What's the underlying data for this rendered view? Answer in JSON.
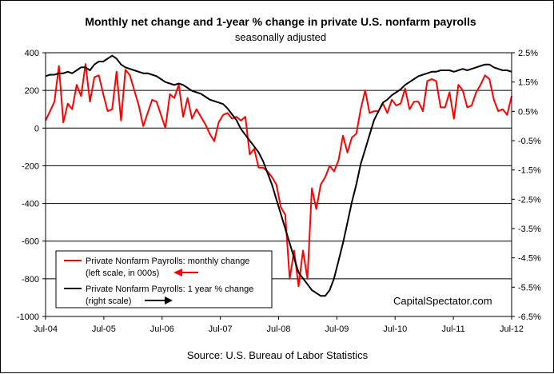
{
  "chart_data": {
    "type": "line",
    "title": "Monthly net change and 1-year %  change in private U.S. nonfarm payrolls",
    "subtitle": "seasonally adjusted",
    "source": "Source: U.S. Bureau of Labor Statistics",
    "watermark": "CapitalSpectator.com",
    "x_labels": [
      "Jul-04",
      "Jul-05",
      "Jul-06",
      "Jul-07",
      "Jul-08",
      "Jul-09",
      "Jul-10",
      "Jul-11",
      "Jul-12"
    ],
    "x_range": [
      "2004-07",
      "2012-07"
    ],
    "y_left": {
      "min": -1000,
      "max": 400,
      "step": 200,
      "ticks": [
        "400",
        "200",
        "0",
        "-200",
        "-400",
        "-600",
        "-800",
        "-1000"
      ]
    },
    "y_right": {
      "min": -6.5,
      "max": 2.5,
      "ticks": [
        "2.5%",
        "1.5%",
        "0.5%",
        "-0.5%",
        "-1.5%",
        "-2.5%",
        "-3.5%",
        "-4.5%",
        "-5.5%",
        "-6.5%"
      ]
    },
    "grid": "horizontal",
    "legend": {
      "placement": "bottom-left",
      "entries": [
        {
          "line1": "Private Nonfarm Payrolls: monthly change",
          "line2": "(left scale, in 000s)",
          "color": "#ff0000",
          "arrow": "left"
        },
        {
          "line1": "Private Nonfarm Payrolls:  1 year % change",
          "line2": "(right scale)",
          "color": "#000000",
          "arrow": "right"
        }
      ]
    },
    "series": [
      {
        "name": "Private Nonfarm Payrolls: monthly change",
        "color": "#ff0000",
        "axis": "left",
        "values": [
          40,
          90,
          140,
          330,
          30,
          130,
          100,
          230,
          170,
          340,
          140,
          270,
          280,
          180,
          90,
          100,
          300,
          40,
          310,
          280,
          200,
          120,
          10,
          80,
          150,
          140,
          70,
          0,
          180,
          160,
          230,
          60,
          160,
          50,
          100,
          60,
          20,
          -30,
          -70,
          30,
          70,
          80,
          50,
          60,
          40,
          60,
          -140,
          -110,
          -210,
          -210,
          -230,
          -260,
          -300,
          -420,
          -460,
          -800,
          -650,
          -840,
          -650,
          -800,
          -320,
          -430,
          -300,
          -260,
          -200,
          -230,
          -170,
          -40,
          -130,
          -50,
          -30,
          100,
          200,
          80,
          90,
          90,
          130,
          80,
          150,
          120,
          130,
          210,
          100,
          140,
          140,
          90,
          250,
          260,
          250,
          110,
          110,
          190,
          50,
          230,
          200,
          110,
          120,
          190,
          230,
          280,
          260,
          150,
          90,
          100,
          70,
          170
        ]
      },
      {
        "name": "Private Nonfarm Payrolls:  1 year % change",
        "color": "#000000",
        "axis": "right",
        "values": [
          1.7,
          1.75,
          1.75,
          1.8,
          1.8,
          1.85,
          1.8,
          1.9,
          2.0,
          2.0,
          1.9,
          2.1,
          2.2,
          2.2,
          2.3,
          2.4,
          2.3,
          2.1,
          2.0,
          1.95,
          1.9,
          1.85,
          1.8,
          1.8,
          1.75,
          1.7,
          1.6,
          1.5,
          1.45,
          1.4,
          1.45,
          1.4,
          1.3,
          1.2,
          1.15,
          1.1,
          1.0,
          0.9,
          0.85,
          0.8,
          0.75,
          0.6,
          0.4,
          0.2,
          -0.1,
          -0.3,
          -0.5,
          -0.7,
          -0.9,
          -1.2,
          -1.6,
          -2.0,
          -2.5,
          -3.0,
          -3.5,
          -4.0,
          -4.5,
          -5.0,
          -5.2,
          -5.4,
          -5.6,
          -5.7,
          -5.8,
          -5.8,
          -5.6,
          -5.2,
          -4.6,
          -4.0,
          -3.3,
          -2.6,
          -2.0,
          -1.3,
          -0.8,
          -0.3,
          0.2,
          0.5,
          0.8,
          0.9,
          1.05,
          1.15,
          1.25,
          1.4,
          1.5,
          1.6,
          1.7,
          1.75,
          1.8,
          1.85,
          1.85,
          1.9,
          1.9,
          1.9,
          1.85,
          1.9,
          1.95,
          1.9,
          1.95,
          2.0,
          2.05,
          2.1,
          2.1,
          2.0,
          1.95,
          1.9,
          1.9,
          1.85
        ]
      }
    ]
  }
}
